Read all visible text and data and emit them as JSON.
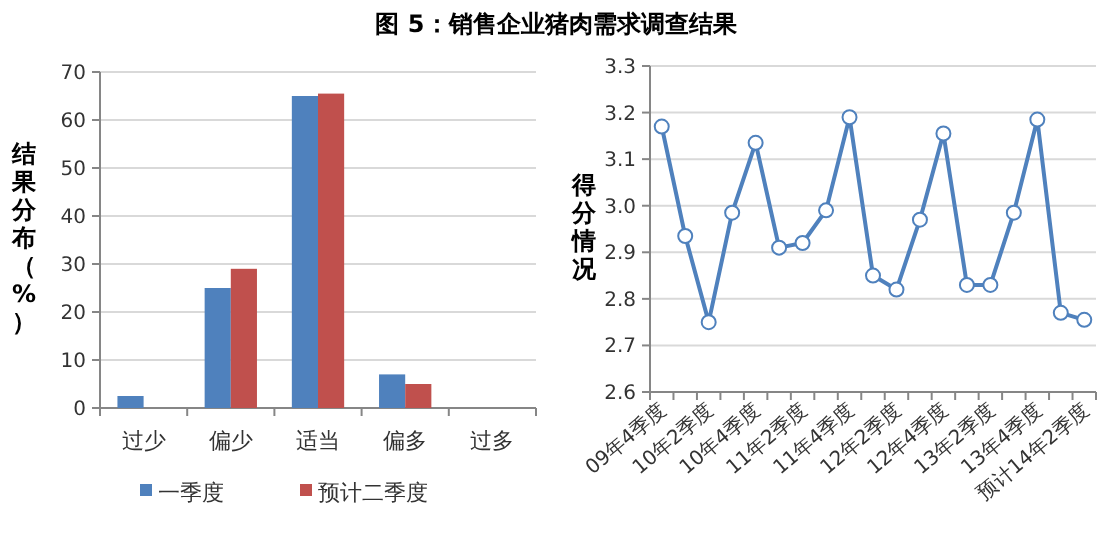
{
  "chart_data": [
    {
      "type": "bar",
      "title": "图 5：销售企业猪肉需求调查结果",
      "ylabel": "结果分布（%）",
      "categories": [
        "过少",
        "偏少",
        "适当",
        "偏多",
        "过多"
      ],
      "series": [
        {
          "name": "一季度",
          "color": "#4f81bd",
          "values": [
            2.5,
            25,
            65,
            7,
            null
          ]
        },
        {
          "name": "预计二季度",
          "color": "#c0504d",
          "values": [
            null,
            29,
            65.5,
            5,
            null
          ]
        }
      ],
      "ylim": [
        0,
        70
      ],
      "yticks": [
        0,
        10,
        20,
        30,
        40,
        50,
        60,
        70
      ],
      "grid": "y",
      "legend": "bottom"
    },
    {
      "type": "line",
      "ylabel": "得分情况",
      "categories": [
        "09年4季度",
        null,
        "10年2季度",
        null,
        "10年4季度",
        null,
        "11年2季度",
        null,
        "11年4季度",
        null,
        "12年2季度",
        null,
        "12年4季度",
        null,
        "13年2季度",
        null,
        "13年4季度",
        null,
        "预计14年2季度"
      ],
      "series": [
        {
          "color": "#4f81bd",
          "values": [
            3.17,
            2.935,
            2.75,
            2.985,
            3.135,
            2.91,
            2.92,
            2.99,
            3.19,
            2.85,
            2.82,
            2.97,
            3.155,
            2.83,
            2.83,
            2.985,
            3.185,
            2.77,
            2.755
          ]
        }
      ],
      "ylim": [
        2.6,
        3.3
      ],
      "yticks": [
        {
          "value": 2.6,
          "label": "2.6"
        },
        {
          "value": 2.7,
          "label": "2.7"
        },
        {
          "value": 2.8,
          "label": "2.8"
        },
        {
          "value": 2.9,
          "label": "2.9"
        },
        {
          "value": 3.0,
          "label": "3.0"
        },
        {
          "value": 3.1,
          "label": "3.1"
        },
        {
          "value": 3.2,
          "label": "3.2"
        },
        {
          "value": 3.3,
          "label": "3.3"
        }
      ],
      "grid": "y",
      "marker": "circle",
      "line_style": "solid"
    }
  ]
}
